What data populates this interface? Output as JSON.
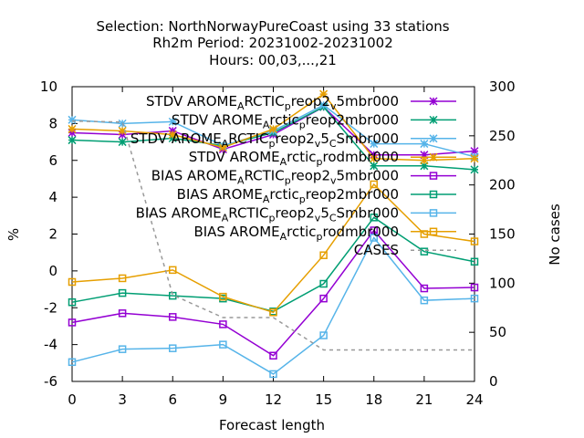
{
  "chart_data": {
    "type": "line",
    "title_lines": [
      "Selection: NorthNorwayPureCoast using    33 stations",
      "Rh2m   Period: 20231002-20231002",
      "Hours:  00,03,...,21"
    ],
    "xlabel": "Forecast length",
    "ylabel": "%",
    "y2label": "No cases",
    "x": [
      0,
      3,
      6,
      9,
      12,
      15,
      18,
      21,
      24
    ],
    "xlim": [
      0,
      24
    ],
    "ylim": [
      -6,
      10
    ],
    "y2lim": [
      0,
      300
    ],
    "xticks": [
      "0",
      "3",
      "6",
      "9",
      "12",
      "15",
      "18",
      "21",
      "24"
    ],
    "yticks": [
      "-6",
      "-4",
      "-2",
      "0",
      "2",
      "4",
      "6",
      "8",
      "10"
    ],
    "y2ticks": [
      "0",
      "50",
      "100",
      "150",
      "200",
      "250",
      "300"
    ],
    "grid": false,
    "legend_position": "top-right",
    "series": [
      {
        "name": "STDV AROME_ARCTIC_preop2_v5mbr000",
        "stat": "STDV",
        "color": "#9400d3",
        "marker": "asterisk",
        "axis": "y1",
        "values": [
          7.5,
          7.4,
          7.6,
          6.6,
          7.4,
          8.9,
          6.3,
          6.3,
          6.5
        ]
      },
      {
        "name": "STDV AROME_Arctic_preop2mbr000",
        "stat": "STDV",
        "color": "#009e73",
        "marker": "asterisk",
        "axis": "y1",
        "values": [
          7.1,
          7.0,
          7.2,
          6.8,
          7.5,
          8.9,
          5.7,
          5.7,
          5.5
        ]
      },
      {
        "name": "STDV AROME_ARCTIC_preop2_v5_CSmbr000",
        "stat": "STDV",
        "color": "#56b4e9",
        "marker": "asterisk",
        "axis": "y1",
        "values": [
          8.2,
          8.0,
          8.1,
          6.8,
          7.6,
          9.0,
          6.9,
          6.9,
          6.2
        ]
      },
      {
        "name": "STDV AROME_Arctic_prodmbr000",
        "stat": "STDV",
        "color": "#e69f00",
        "marker": "asterisk",
        "axis": "y1",
        "values": [
          7.7,
          7.6,
          7.4,
          6.7,
          7.7,
          9.6,
          6.1,
          6.0,
          6.1
        ]
      },
      {
        "name": "BIAS AROME_ARCTIC_preop2_v5mbr000",
        "stat": "BIAS",
        "color": "#9400d3",
        "marker": "square",
        "axis": "y1",
        "values": [
          -2.8,
          -2.3,
          -2.5,
          -2.9,
          -4.6,
          -1.5,
          2.2,
          -0.95,
          -0.9
        ]
      },
      {
        "name": "BIAS AROME_Arctic_preop2mbr000",
        "stat": "BIAS",
        "color": "#009e73",
        "marker": "square",
        "axis": "y1",
        "values": [
          -1.7,
          -1.2,
          -1.35,
          -1.5,
          -2.2,
          -0.7,
          2.9,
          1.05,
          0.5
        ]
      },
      {
        "name": "BIAS AROME_ARCTIC_preop2_v5_CSmbr000",
        "stat": "BIAS",
        "color": "#56b4e9",
        "marker": "square",
        "axis": "y1",
        "values": [
          -4.95,
          -4.25,
          -4.2,
          -4.0,
          -5.6,
          -3.5,
          1.8,
          -1.6,
          -1.5
        ]
      },
      {
        "name": "BIAS AROME_Arctic_prodmbr000",
        "stat": "BIAS",
        "color": "#e69f00",
        "marker": "square",
        "axis": "y1",
        "values": [
          -0.6,
          -0.4,
          0.05,
          -1.4,
          -2.25,
          0.85,
          4.7,
          2.0,
          1.6
        ]
      },
      {
        "name": "CASES",
        "stat": "CASES",
        "color": "#999999",
        "marker": "none",
        "dash": true,
        "axis": "y2",
        "values": [
          265,
          264,
          88,
          65,
          65,
          32,
          32,
          32,
          32
        ]
      }
    ],
    "legend": [
      {
        "segments": [
          [
            "STDV AROME",
            ""
          ],
          [
            "A",
            "sub"
          ],
          [
            "RCTIC",
            ""
          ],
          [
            "p",
            "sub"
          ],
          [
            "reop2",
            ""
          ],
          [
            "v",
            "sub"
          ],
          [
            "5mbr000",
            ""
          ]
        ]
      },
      {
        "segments": [
          [
            "STDV AROME",
            ""
          ],
          [
            "A",
            "sub"
          ],
          [
            "rctic",
            ""
          ],
          [
            "p",
            "sub"
          ],
          [
            "reop2mbr000",
            ""
          ]
        ]
      },
      {
        "segments": [
          [
            "STDV AROME",
            ""
          ],
          [
            "A",
            "sub"
          ],
          [
            "RCTIC",
            ""
          ],
          [
            "p",
            "sub"
          ],
          [
            "reop2",
            ""
          ],
          [
            "v",
            "sub"
          ],
          [
            "5",
            ""
          ],
          [
            "C",
            "sub"
          ],
          [
            "Smbr000",
            ""
          ]
        ]
      },
      {
        "segments": [
          [
            "STDV AROME",
            ""
          ],
          [
            "A",
            "sub"
          ],
          [
            "rctic",
            ""
          ],
          [
            "p",
            "sub"
          ],
          [
            "rodmbr000",
            ""
          ]
        ]
      },
      {
        "segments": [
          [
            "BIAS AROME",
            ""
          ],
          [
            "A",
            "sub"
          ],
          [
            "RCTIC",
            ""
          ],
          [
            "p",
            "sub"
          ],
          [
            "reop2",
            ""
          ],
          [
            "v",
            "sub"
          ],
          [
            "5mbr000",
            ""
          ]
        ]
      },
      {
        "segments": [
          [
            "BIAS AROME",
            ""
          ],
          [
            "A",
            "sub"
          ],
          [
            "rctic",
            ""
          ],
          [
            "p",
            "sub"
          ],
          [
            "reop2mbr000",
            ""
          ]
        ]
      },
      {
        "segments": [
          [
            "BIAS AROME",
            ""
          ],
          [
            "A",
            "sub"
          ],
          [
            "RCTIC",
            ""
          ],
          [
            "p",
            "sub"
          ],
          [
            "reop2",
            ""
          ],
          [
            "v",
            "sub"
          ],
          [
            "5",
            ""
          ],
          [
            "C",
            "sub"
          ],
          [
            "Smbr000",
            ""
          ]
        ]
      },
      {
        "segments": [
          [
            "BIAS AROME",
            ""
          ],
          [
            "A",
            "sub"
          ],
          [
            "rctic",
            ""
          ],
          [
            "p",
            "sub"
          ],
          [
            "rodmbr000",
            ""
          ]
        ]
      },
      {
        "segments": [
          [
            "CASES",
            ""
          ]
        ]
      }
    ]
  }
}
